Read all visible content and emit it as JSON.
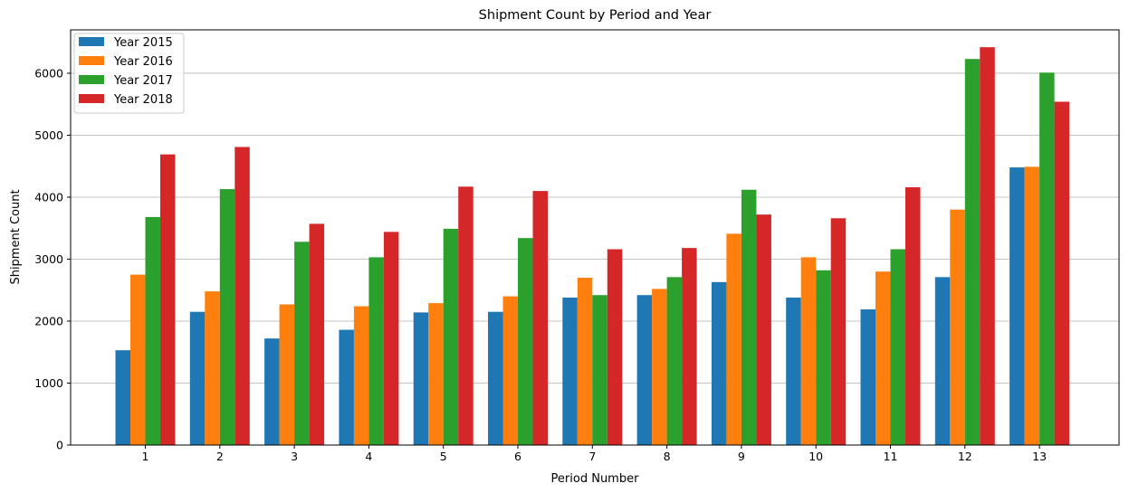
{
  "colors": {
    "series": [
      "#1f77b4",
      "#ff7f0e",
      "#2ca02c",
      "#d62728"
    ],
    "grid": "#b0b0b0",
    "axis": "#000000"
  },
  "chart_data": {
    "type": "bar",
    "title": "Shipment Count by Period and Year",
    "xlabel": "Period Number",
    "ylabel": "Shipment Count",
    "categories": [
      "1",
      "2",
      "3",
      "4",
      "5",
      "6",
      "7",
      "8",
      "9",
      "10",
      "11",
      "12",
      "13"
    ],
    "ylim": [
      0,
      6700
    ],
    "yticks": [
      0,
      1000,
      2000,
      3000,
      4000,
      5000,
      6000
    ],
    "grid": "y",
    "legend_position": "top-left",
    "series": [
      {
        "name": "Year 2015",
        "values": [
          1530,
          2150,
          1720,
          1860,
          2140,
          2150,
          2380,
          2420,
          2630,
          2380,
          2190,
          2710,
          4480
        ]
      },
      {
        "name": "Year 2016",
        "values": [
          2750,
          2480,
          2270,
          2240,
          2290,
          2400,
          2700,
          2520,
          3410,
          3030,
          2800,
          3800,
          4490
        ]
      },
      {
        "name": "Year 2017",
        "values": [
          3680,
          4130,
          3280,
          3030,
          3490,
          3340,
          2420,
          2710,
          4120,
          2820,
          3160,
          6230,
          6010
        ]
      },
      {
        "name": "Year 2018",
        "values": [
          4690,
          4810,
          3570,
          3440,
          4170,
          4100,
          3160,
          3180,
          3720,
          3660,
          4160,
          6420,
          5540
        ]
      }
    ]
  }
}
